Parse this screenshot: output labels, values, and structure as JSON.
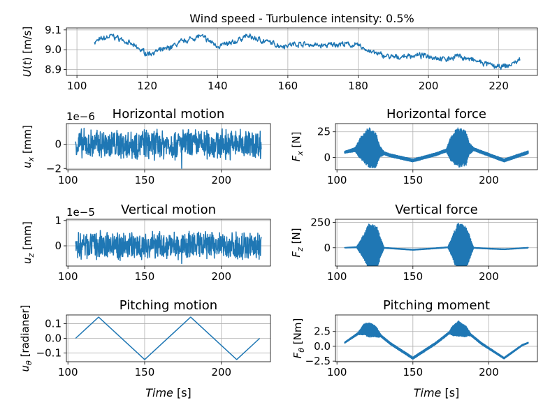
{
  "figure": {
    "suptitle": "Wind speed - Turbulence intensity: 0.5%"
  },
  "chart_data": [
    {
      "id": "wind",
      "type": "line",
      "title": "",
      "xlabel": "",
      "ylabel": "U(t) [m/s]",
      "xlim": [
        97,
        231
      ],
      "ylim": [
        8.87,
        9.11
      ],
      "xticks": [
        100,
        120,
        140,
        160,
        180,
        200,
        220
      ],
      "yticks": [
        8.9,
        9.0,
        9.1
      ],
      "ytick_labels": [
        "8.9",
        "9.0",
        "9.1"
      ],
      "grid": true,
      "series": [
        {
          "color": "#1f77b4",
          "kind": "noisy",
          "x_range": [
            105,
            226
          ],
          "noise_amplitude": 0.012,
          "trend": [
            [
              105,
              9.04
            ],
            [
              110,
              9.07
            ],
            [
              113,
              9.05
            ],
            [
              116,
              9.02
            ],
            [
              120,
              8.98
            ],
            [
              125,
              9.0
            ],
            [
              130,
              9.04
            ],
            [
              135,
              9.07
            ],
            [
              140,
              9.02
            ],
            [
              144,
              9.03
            ],
            [
              148,
              9.07
            ],
            [
              152,
              9.05
            ],
            [
              158,
              9.02
            ],
            [
              163,
              9.03
            ],
            [
              170,
              9.02
            ],
            [
              175,
              9.03
            ],
            [
              180,
              9.02
            ],
            [
              185,
              8.98
            ],
            [
              190,
              8.96
            ],
            [
              195,
              8.97
            ],
            [
              200,
              8.97
            ],
            [
              205,
              8.95
            ],
            [
              208,
              8.97
            ],
            [
              212,
              8.95
            ],
            [
              216,
              8.93
            ],
            [
              220,
              8.91
            ],
            [
              223,
              8.92
            ],
            [
              226,
              8.95
            ]
          ]
        }
      ]
    },
    {
      "id": "ux",
      "type": "line",
      "title": "Horizontal motion",
      "xlabel": "",
      "ylabel": "u_x [mm]",
      "offset_text": "1e−6",
      "xlim": [
        99,
        232
      ],
      "ylim": [
        -2.1,
        1.7
      ],
      "xticks": [
        100,
        150,
        200
      ],
      "yticks": [
        -2,
        0
      ],
      "ytick_labels": [
        "−2",
        "0"
      ],
      "grid": true,
      "series": [
        {
          "color": "#1f77b4",
          "kind": "noise",
          "x_range": [
            105,
            226
          ],
          "amplitude": 1.4,
          "peak_min": -2.0
        }
      ]
    },
    {
      "id": "fx",
      "type": "line",
      "title": "Horizontal force",
      "xlabel": "",
      "ylabel": "F_x [N]",
      "xlim": [
        99,
        232
      ],
      "ylim": [
        -12,
        33
      ],
      "xticks": [
        100,
        150,
        200
      ],
      "yticks": [
        0,
        25
      ],
      "ytick_labels": [
        "0",
        "25"
      ],
      "grid": true,
      "series": [
        {
          "color": "#1f77b4",
          "kind": "band",
          "x_range": [
            105,
            226
          ],
          "center": [
            [
              105,
              5
            ],
            [
              113,
              8
            ],
            [
              120,
              10
            ],
            [
              135,
              2
            ],
            [
              150,
              -3
            ],
            [
              165,
              3
            ],
            [
              178,
              10
            ],
            [
              190,
              8
            ],
            [
              210,
              -3
            ],
            [
              226,
              5
            ]
          ],
          "halfwidth": [
            [
              105,
              1
            ],
            [
              112,
              2
            ],
            [
              116,
              12
            ],
            [
              121,
              20
            ],
            [
              126,
              17
            ],
            [
              128,
              6
            ],
            [
              131,
              1.5
            ],
            [
              172,
              1.5
            ],
            [
              175,
              12
            ],
            [
              179,
              20
            ],
            [
              185,
              17
            ],
            [
              187,
              6
            ],
            [
              190,
              1.5
            ],
            [
              226,
              1.5
            ]
          ]
        }
      ]
    },
    {
      "id": "uz",
      "type": "line",
      "title": "Vertical motion",
      "xlabel": "",
      "ylabel": "u_z [mm]",
      "offset_text": "1e−5",
      "xlim": [
        99,
        232
      ],
      "ylim": [
        -0.8,
        1.05
      ],
      "xticks": [
        100,
        150,
        200
      ],
      "yticks": [
        0,
        1
      ],
      "ytick_labels": [
        "0",
        "1"
      ],
      "grid": true,
      "series": [
        {
          "color": "#1f77b4",
          "kind": "noise",
          "x_range": [
            105,
            226
          ],
          "amplitude": 0.62,
          "peak_min": -0.7
        }
      ]
    },
    {
      "id": "fz",
      "type": "line",
      "title": "Vertical force",
      "xlabel": "",
      "ylabel": "F_z [N]",
      "xlim": [
        99,
        232
      ],
      "ylim": [
        -180,
        280
      ],
      "xticks": [
        100,
        150,
        200
      ],
      "yticks": [
        0,
        250
      ],
      "ytick_labels": [
        "0",
        "250"
      ],
      "grid": true,
      "series": [
        {
          "color": "#1f77b4",
          "kind": "band",
          "x_range": [
            105,
            226
          ],
          "center": [
            [
              105,
              0
            ],
            [
              120,
              10
            ],
            [
              135,
              -5
            ],
            [
              150,
              -20
            ],
            [
              165,
              -5
            ],
            [
              178,
              10
            ],
            [
              195,
              -5
            ],
            [
              210,
              -15
            ],
            [
              226,
              0
            ]
          ],
          "halfwidth": [
            [
              105,
              2
            ],
            [
              113,
              5
            ],
            [
              117,
              110
            ],
            [
              121,
              230
            ],
            [
              126,
              220
            ],
            [
              129,
              90
            ],
            [
              131,
              4
            ],
            [
              173,
              4
            ],
            [
              176,
              110
            ],
            [
              179,
              235
            ],
            [
              185,
              220
            ],
            [
              188,
              90
            ],
            [
              190,
              4
            ],
            [
              226,
              3
            ]
          ]
        }
      ]
    },
    {
      "id": "ut",
      "type": "line",
      "title": "Pitching motion",
      "xlabel": "Time [s]",
      "ylabel": "u_θ [radianer]",
      "xlim": [
        99,
        232
      ],
      "ylim": [
        -0.16,
        0.16
      ],
      "xticks": [
        100,
        150,
        200
      ],
      "yticks": [
        -0.1,
        0.0,
        0.1
      ],
      "ytick_labels": [
        "−0.1",
        "0.0",
        "0.1"
      ],
      "grid": true,
      "series": [
        {
          "color": "#1f77b4",
          "kind": "polyline",
          "points": [
            [
              105,
              0.0
            ],
            [
              120,
              0.145
            ],
            [
              150,
              -0.145
            ],
            [
              180,
              0.145
            ],
            [
              210,
              -0.145
            ],
            [
              225,
              0.0
            ]
          ]
        }
      ]
    },
    {
      "id": "ft",
      "type": "line",
      "title": "Pitching moment",
      "xlabel": "Time [s]",
      "ylabel": "F_θ [Nm]",
      "xlim": [
        99,
        232
      ],
      "ylim": [
        -2.6,
        5.3
      ],
      "xticks": [
        100,
        150,
        200
      ],
      "yticks": [
        -2.5,
        0.0,
        2.5
      ],
      "ytick_labels": [
        "−2.5",
        "0.0",
        "2.5"
      ],
      "grid": true,
      "series": [
        {
          "color": "#1f77b4",
          "kind": "band",
          "x_range": [
            105,
            226
          ],
          "center": [
            [
              105,
              0.6
            ],
            [
              113,
              2.0
            ],
            [
              118,
              2.9
            ],
            [
              125,
              2.6
            ],
            [
              135,
              0.5
            ],
            [
              150,
              -2.0
            ],
            [
              165,
              0.5
            ],
            [
              175,
              2.5
            ],
            [
              180,
              3.0
            ],
            [
              186,
              2.4
            ],
            [
              195,
              0.5
            ],
            [
              210,
              -2.0
            ],
            [
              222,
              0.2
            ],
            [
              226,
              0.6
            ]
          ],
          "halfwidth": [
            [
              105,
              0.1
            ],
            [
              114,
              0.2
            ],
            [
              117,
              0.8
            ],
            [
              121,
              1.3
            ],
            [
              126,
              0.9
            ],
            [
              129,
              0.2
            ],
            [
              174,
              0.2
            ],
            [
              176,
              0.8
            ],
            [
              180,
              1.3
            ],
            [
              185,
              0.9
            ],
            [
              188,
              0.2
            ],
            [
              226,
              0.1
            ]
          ]
        }
      ]
    }
  ]
}
